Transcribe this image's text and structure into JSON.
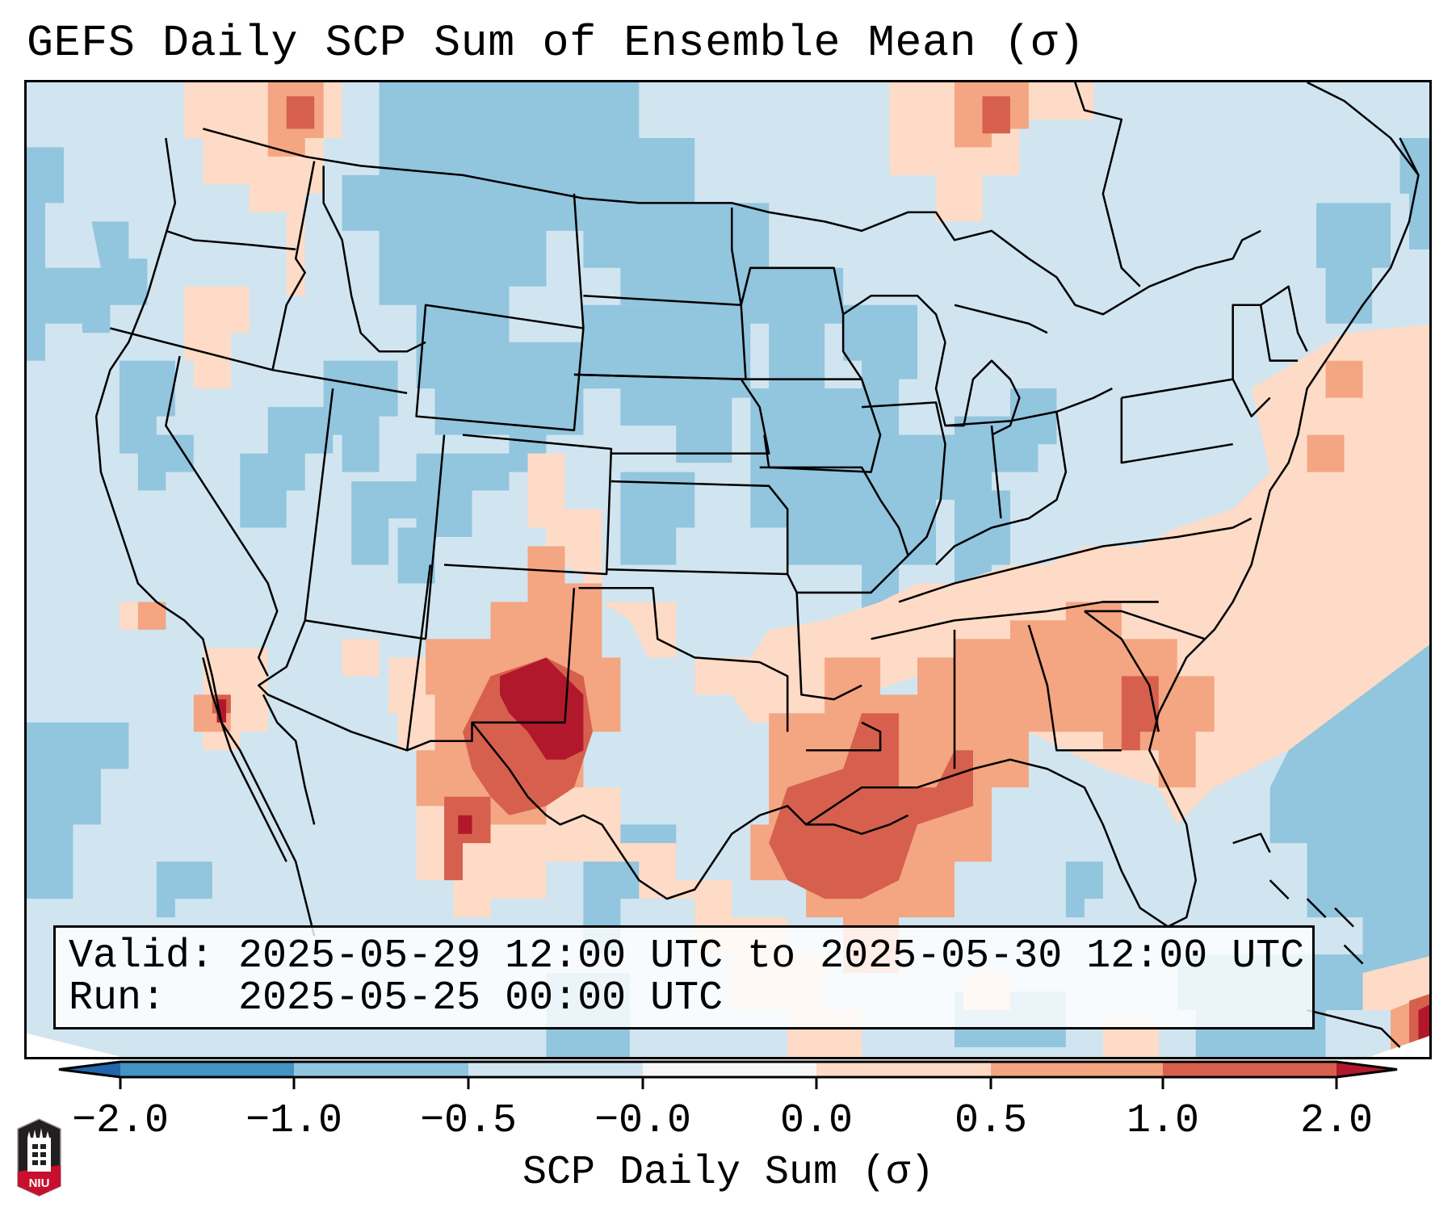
{
  "title": "GEFS Daily SCP Sum of Ensemble Mean (σ)",
  "info_box": {
    "valid_line": "Valid: 2025-05-29 12:00 UTC to 2025-05-30 12:00 UTC",
    "run_line": "Run:   2025-05-25 00:00 UTC"
  },
  "colorbar": {
    "label": "SCP Daily Sum (σ)",
    "tick_labels": [
      "−2.0",
      "−1.0",
      "−0.5",
      "−0.0",
      "0.0",
      "0.5",
      "1.0",
      "2.0"
    ],
    "bands": [
      {
        "range": "< -2.0",
        "color": "#2166ac"
      },
      {
        "range": "-2.0 to -1.0",
        "color": "#4393c3"
      },
      {
        "range": "-1.0 to -0.5",
        "color": "#92c5de"
      },
      {
        "range": "-0.5 to -0.0",
        "color": "#d1e5f0"
      },
      {
        "range": "-0.0 to 0.0",
        "color": "#f7f7f7"
      },
      {
        "range": "0.0 to 0.5",
        "color": "#fddbc7"
      },
      {
        "range": "0.5 to 1.0",
        "color": "#f4a582"
      },
      {
        "range": "1.0 to 2.0",
        "color": "#d6604d"
      },
      {
        "range": "> 2.0",
        "color": "#b2182b"
      }
    ]
  },
  "logo": {
    "text": "NIU"
  }
}
